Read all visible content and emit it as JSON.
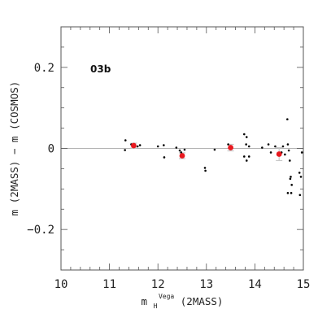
{
  "chart_data": {
    "type": "scatter",
    "panel_label": "03b",
    "ylabel": "m (2MASS) − m (COSMOS)",
    "xlabel": {
      "base": "m",
      "superscript": "Vega",
      "subscript": "H",
      "suffix": " (2MASS)"
    },
    "xlim": [
      10,
      15
    ],
    "ylim": [
      -0.3,
      0.3
    ],
    "x_ticks": [
      10,
      11,
      12,
      13,
      14,
      15
    ],
    "x_tick_labels": [
      "10",
      "11",
      "12",
      "13",
      "14",
      "15"
    ],
    "y_ticks": [
      0.2,
      0,
      -0.2
    ],
    "y_tick_labels": [
      "0.2",
      "0",
      "−0.2"
    ],
    "reference_line_y": 0,
    "grid": false,
    "colors": {
      "points": "#000000",
      "binned": "#e8191f",
      "errorbar": "#c8c8c8",
      "zero_line": "#9a9a9a",
      "axes": "#555555"
    },
    "series": [
      {
        "points": [
          [
            11.33,
            0.02
          ],
          [
            11.32,
            -0.004
          ],
          [
            11.45,
            0.01
          ],
          [
            11.58,
            0.005
          ],
          [
            11.63,
            0.008
          ],
          [
            12.0,
            0.005
          ],
          [
            12.12,
            0.008
          ],
          [
            12.13,
            -0.022
          ],
          [
            12.38,
            0.002
          ],
          [
            12.45,
            -0.005
          ],
          [
            12.48,
            -0.01
          ],
          [
            12.55,
            -0.003
          ],
          [
            12.97,
            -0.048
          ],
          [
            12.98,
            -0.055
          ],
          [
            13.17,
            -0.003
          ],
          [
            13.45,
            0.01
          ],
          [
            13.52,
            0.005
          ],
          [
            13.78,
            0.035
          ],
          [
            13.83,
            0.028
          ],
          [
            13.82,
            0.01
          ],
          [
            13.88,
            0.005
          ],
          [
            13.78,
            -0.02
          ],
          [
            13.83,
            -0.03
          ],
          [
            13.88,
            -0.02
          ],
          [
            14.15,
            0.002
          ],
          [
            14.28,
            0.01
          ],
          [
            14.33,
            -0.01
          ],
          [
            14.42,
            0.005
          ],
          [
            14.55,
            -0.01
          ],
          [
            14.58,
            0.005
          ],
          [
            14.62,
            -0.015
          ],
          [
            14.67,
            0.072
          ],
          [
            14.68,
            0.01
          ],
          [
            14.7,
            -0.005
          ],
          [
            14.72,
            -0.03
          ],
          [
            14.74,
            -0.07
          ],
          [
            14.73,
            -0.075
          ],
          [
            14.76,
            -0.09
          ],
          [
            14.68,
            -0.11
          ],
          [
            14.75,
            -0.11
          ],
          [
            14.92,
            -0.06
          ],
          [
            14.95,
            -0.07
          ],
          [
            14.93,
            -0.115
          ],
          [
            14.97,
            -0.01
          ]
        ]
      },
      {
        "points": [
          {
            "x": 11.5,
            "y": 0.007,
            "err": 0.006
          },
          {
            "x": 12.5,
            "y": -0.018,
            "err": 0.007
          },
          {
            "x": 13.5,
            "y": 0.002,
            "err": 0.008
          },
          {
            "x": 14.5,
            "y": -0.014,
            "err": 0.016
          }
        ]
      }
    ]
  }
}
